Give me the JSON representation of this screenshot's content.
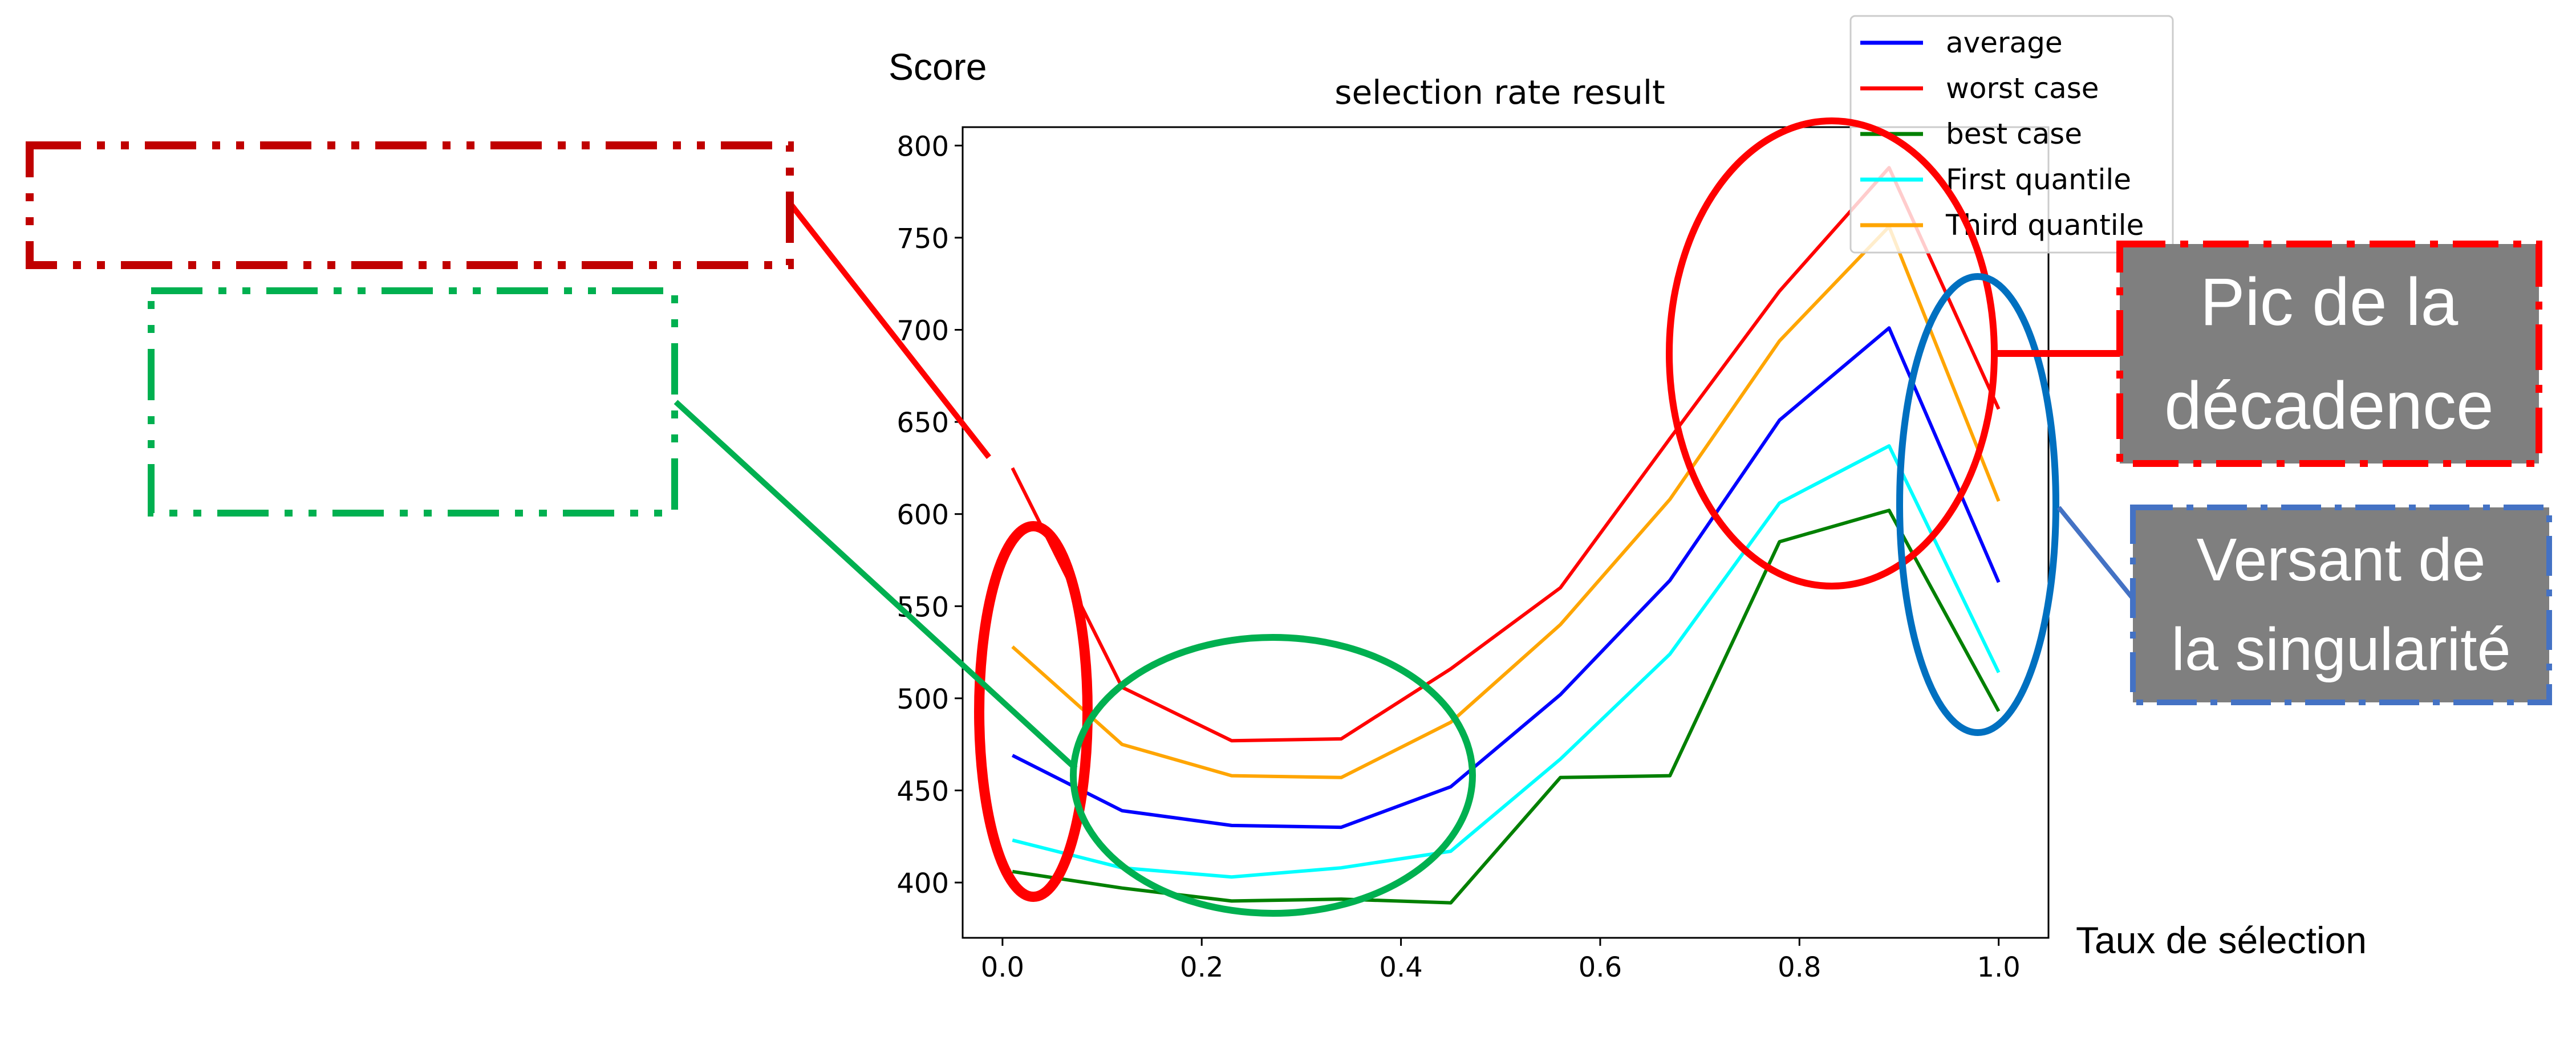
{
  "annotations": {
    "y_axis_note": "Score",
    "x_axis_note": "Taux de sélection",
    "peak_box": [
      "Pic de la",
      "décadence"
    ],
    "slope_box": [
      "Versant de",
      "la singularité"
    ]
  },
  "colors": {
    "red_marker": "#ff0000",
    "green_marker": "#00b050",
    "blue_marker": "#0070c0",
    "dark_red_box": "#c00000",
    "blue_box_border": "#4472c4",
    "label_box_fill": "#7f7f7f"
  },
  "chart_data": {
    "type": "line",
    "title": "selection rate result",
    "xlabel": "",
    "ylabel": "",
    "x": [
      0.01,
      0.12,
      0.23,
      0.34,
      0.45,
      0.56,
      0.67,
      0.78,
      0.89,
      1.0
    ],
    "xticks": [
      "0.0",
      "0.2",
      "0.4",
      "0.6",
      "0.8",
      "1.0"
    ],
    "xtick_values": [
      0.0,
      0.2,
      0.4,
      0.6,
      0.8,
      1.0
    ],
    "yticks": [
      "400",
      "450",
      "500",
      "550",
      "600",
      "650",
      "700",
      "750",
      "800"
    ],
    "ytick_values": [
      400,
      450,
      500,
      550,
      600,
      650,
      700,
      750,
      800
    ],
    "xlim": [
      -0.04,
      1.05
    ],
    "ylim": [
      370,
      810
    ],
    "legend_position": "top-right",
    "grid": false,
    "series": [
      {
        "name": "average",
        "color": "#0000ff",
        "values": [
          469,
          439,
          431,
          430,
          452,
          502,
          564,
          651,
          701,
          563
        ]
      },
      {
        "name": "worst case",
        "color": "#ff0000",
        "values": [
          625,
          506,
          477,
          478,
          516,
          560,
          641,
          721,
          788,
          657
        ]
      },
      {
        "name": "best case",
        "color": "#008000",
        "values": [
          406,
          397,
          390,
          391,
          389,
          457,
          458,
          585,
          602,
          493
        ]
      },
      {
        "name": "First quantile",
        "color": "#00ffff",
        "values": [
          423,
          408,
          403,
          408,
          417,
          467,
          524,
          606,
          637,
          514
        ]
      },
      {
        "name": "Third quantile",
        "color": "#ffa500",
        "values": [
          528,
          475,
          458,
          457,
          487,
          540,
          608,
          694,
          756,
          607
        ]
      }
    ]
  }
}
